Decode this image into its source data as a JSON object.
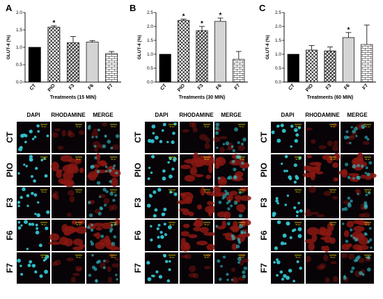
{
  "panels": [
    {
      "letter": "A",
      "xlabel": "Treatments (15 MIN)"
    },
    {
      "letter": "B",
      "xlabel": "Treatments (30 MIN)"
    },
    {
      "letter": "C",
      "xlabel": "Treatments (60 MIN)"
    }
  ],
  "micro_headers": [
    "DAPI",
    "RHODAMINE",
    "MERGE"
  ],
  "row_labels": [
    "CT",
    "PIO",
    "F3",
    "F6",
    "F7"
  ],
  "scale_text": "50 μm",
  "colors": {
    "ct": "#000000",
    "pio": "#555555",
    "f3": "#888888",
    "f6": "#d4d4d4",
    "f7": "#ffffff",
    "error": "#000000",
    "dapi": "#31c4cf",
    "rhodamine": "#8a1812",
    "merge": "#5a3f46",
    "background": "#070307",
    "scalebar": "#f2e400"
  },
  "chart_data": [
    {
      "type": "bar",
      "title": "",
      "xlabel": "Treatments (15 MIN)",
      "ylabel": "GLUT-4 (%)",
      "categories": [
        "CT",
        "PIO",
        "F3",
        "F6",
        "F7"
      ],
      "values": [
        1.0,
        1.58,
        1.13,
        1.15,
        0.82
      ],
      "errors": [
        0,
        0.04,
        0.18,
        0.04,
        0.06
      ],
      "significant": [
        false,
        true,
        false,
        false,
        false
      ],
      "ylim": [
        0,
        2.0
      ],
      "yticks": [
        0.0,
        0.5,
        1.0,
        1.5,
        2.0
      ],
      "yticklabels": [
        "0.0",
        "0.5",
        "1.0",
        "1.5",
        "2.0"
      ]
    },
    {
      "type": "bar",
      "title": "",
      "xlabel": "Treatments (30 MIN)",
      "ylabel": "GLUT-4 (%)",
      "categories": [
        "CT",
        "PIO",
        "F3",
        "F6",
        "F7"
      ],
      "values": [
        1.0,
        2.22,
        1.85,
        2.18,
        0.82
      ],
      "errors": [
        0,
        0.04,
        0.15,
        0.12,
        0.28
      ],
      "significant": [
        false,
        true,
        true,
        true,
        false
      ],
      "ylim": [
        0,
        2.5
      ],
      "yticks": [
        0.0,
        0.5,
        1.0,
        1.5,
        2.0,
        2.5
      ],
      "yticklabels": [
        "0.0",
        "0.5",
        "1.0",
        "1.5",
        "2.0",
        "2.5"
      ]
    },
    {
      "type": "bar",
      "title": "",
      "xlabel": "Treatments (60 MIN)",
      "ylabel": "GLUT-4 (%)",
      "categories": [
        "CT",
        "PIO",
        "F3",
        "F6",
        "F7"
      ],
      "values": [
        1.0,
        1.15,
        1.12,
        1.6,
        1.35
      ],
      "errors": [
        0,
        0.16,
        0.14,
        0.18,
        0.7
      ],
      "significant": [
        false,
        false,
        false,
        true,
        false
      ],
      "ylim": [
        0,
        2.5
      ],
      "yticks": [
        0.0,
        0.5,
        1.0,
        1.5,
        2.0,
        2.5
      ],
      "yticklabels": [
        "0.0",
        "0.5",
        "1.0",
        "1.5",
        "2.0",
        "2.5"
      ]
    }
  ]
}
